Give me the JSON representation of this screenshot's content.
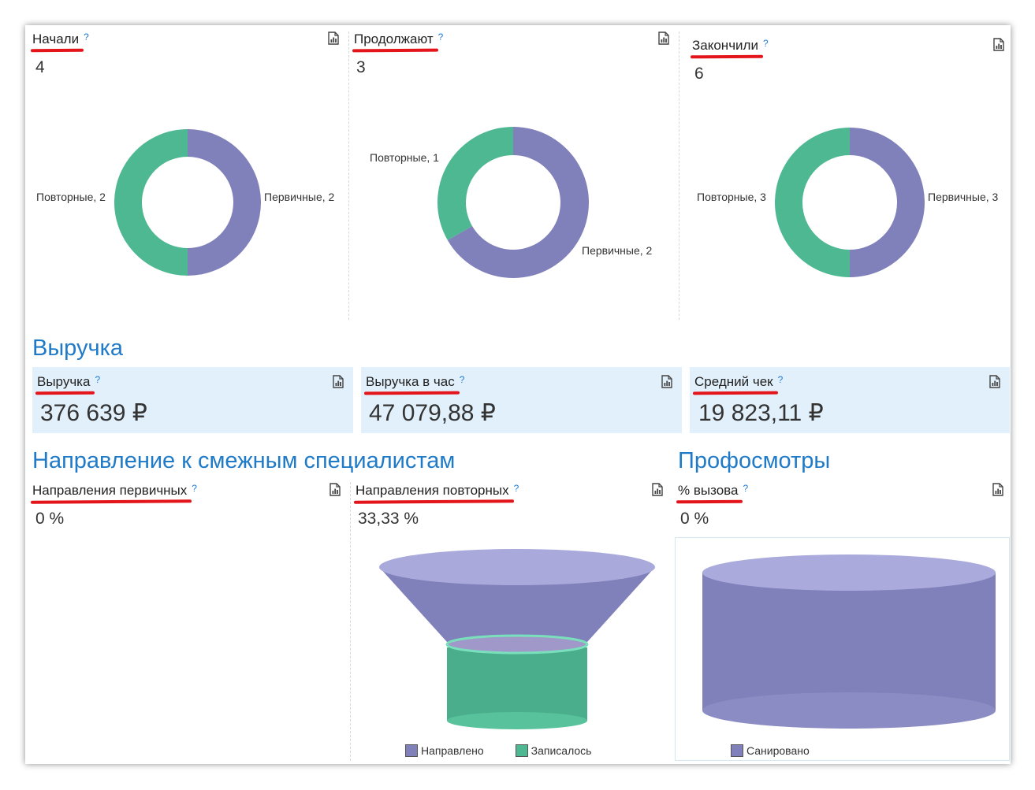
{
  "colors": {
    "primary": "#8080ba",
    "repeat": "#4db891",
    "accent": "#1f7ac8",
    "underline": "#e3151a"
  },
  "icons": {
    "help": "?",
    "report": "report-icon"
  },
  "patients": {
    "started": {
      "title": "Начали",
      "value": "4",
      "chart_data": {
        "type": "pie",
        "donut": true,
        "slices": [
          {
            "label": "Первичные",
            "value": 2,
            "text": "Первичные, 2"
          },
          {
            "label": "Повторные",
            "value": 2,
            "text": "Повторные, 2"
          }
        ]
      }
    },
    "continuing": {
      "title": "Продолжают",
      "value": "3",
      "chart_data": {
        "type": "pie",
        "donut": true,
        "slices": [
          {
            "label": "Первичные",
            "value": 2,
            "text": "Первичные, 2"
          },
          {
            "label": "Повторные",
            "value": 1,
            "text": "Повторные, 1"
          }
        ]
      }
    },
    "finished": {
      "title": "Закончили",
      "value": "6",
      "chart_data": {
        "type": "pie",
        "donut": true,
        "slices": [
          {
            "label": "Первичные",
            "value": 3,
            "text": "Первичные, 3"
          },
          {
            "label": "Повторные",
            "value": 3,
            "text": "Повторные, 3"
          }
        ]
      }
    }
  },
  "revenue": {
    "section_title": "Выручка",
    "total": {
      "title": "Выручка",
      "value": "376 639 ₽"
    },
    "per_hour": {
      "title": "Выручка в час",
      "value": "47 079,88 ₽"
    },
    "avg_check": {
      "title": "Средний чек",
      "value": "19 823,11 ₽"
    }
  },
  "referrals": {
    "section_title": "Направление к смежным специалистам",
    "primary": {
      "title": "Направления первичных",
      "value": "0 %"
    },
    "repeat": {
      "title": "Направления повторных",
      "value": "33,33 %",
      "chart_data": {
        "type": "funnel",
        "stages": [
          {
            "label": "Направлено",
            "value": 3
          },
          {
            "label": "Записалось",
            "value": 1
          }
        ]
      }
    }
  },
  "checkups": {
    "section_title": "Профосмотры",
    "call": {
      "title": "% вызова",
      "value": "0 %",
      "chart_data": {
        "type": "funnel",
        "stages": [
          {
            "label": "Санировано",
            "value": 1
          }
        ]
      }
    }
  }
}
